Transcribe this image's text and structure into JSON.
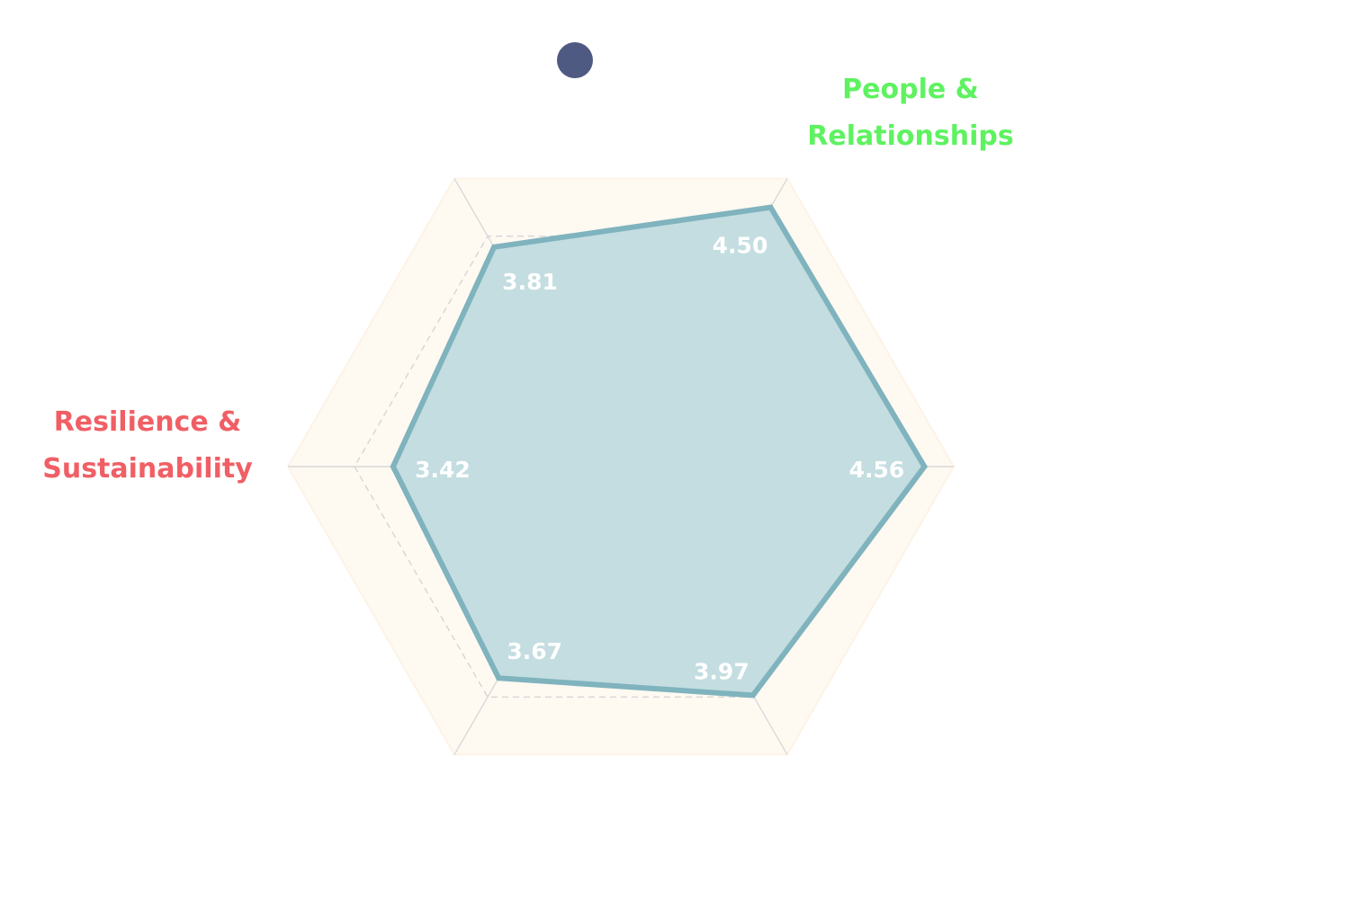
{
  "chart_data": {
    "type": "radar",
    "title": "",
    "max": 5,
    "levels": 5,
    "grid": true,
    "grid_style": "dashed",
    "background_color": "#fef9f1",
    "marker_color": "#4f5a83",
    "series": [
      {
        "color": "#7fb3be",
        "fill": "#c3dcdf",
        "values": [
          4.56,
          4.5,
          3.81,
          3.42,
          3.67,
          3.97
        ]
      }
    ],
    "value_labels": [
      "4.56",
      "4.50",
      "3.81",
      "3.42",
      "3.67",
      "3.97"
    ],
    "axis_labels": [
      {
        "lines": [],
        "color": ""
      },
      {
        "lines": [
          "People &",
          "Relationships"
        ],
        "color": "#5ef260"
      },
      {
        "lines": [],
        "color": ""
      },
      {
        "lines": [
          "Resilience &",
          "Sustainability"
        ],
        "color": "#f05f65"
      },
      {
        "lines": [],
        "color": ""
      },
      {
        "lines": [],
        "color": ""
      }
    ]
  }
}
